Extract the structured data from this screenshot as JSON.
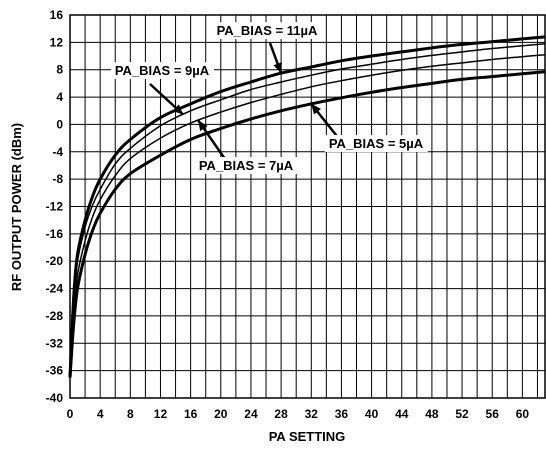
{
  "chart_data": {
    "type": "line",
    "xlabel": "PA SETTING",
    "ylabel": "RF OUTPUT POWER (dBm)",
    "xlim": [
      0,
      63
    ],
    "ylim": [
      -40,
      16
    ],
    "xticks": [
      0,
      4,
      8,
      12,
      16,
      20,
      24,
      28,
      32,
      36,
      40,
      44,
      48,
      52,
      56,
      60
    ],
    "yticks": [
      16,
      12,
      8,
      4,
      0,
      -4,
      -8,
      -12,
      -16,
      -20,
      -24,
      -28,
      -32,
      -36,
      -40
    ],
    "grid": true,
    "series": [
      {
        "name": "PA_BIAS = 11µA",
        "x": [
          0,
          0.5,
          1,
          2,
          3,
          4,
          6,
          8,
          12,
          16,
          20,
          24,
          28,
          32,
          36,
          40,
          44,
          48,
          52,
          56,
          60,
          63
        ],
        "y": [
          -37,
          -25,
          -19,
          -14,
          -10.5,
          -8,
          -4.5,
          -2.2,
          1,
          3,
          4.8,
          6.2,
          7.5,
          8.4,
          9.3,
          10.0,
          10.6,
          11.2,
          11.7,
          12.1,
          12.5,
          12.8
        ]
      },
      {
        "name": "PA_BIAS = 9µA",
        "x": [
          0,
          0.5,
          1,
          2,
          3,
          4,
          6,
          8,
          12,
          16,
          20,
          24,
          28,
          32,
          36,
          40,
          44,
          48,
          52,
          56,
          60,
          63
        ],
        "y": [
          -37,
          -26,
          -20,
          -15,
          -11.8,
          -9.5,
          -5.8,
          -3.5,
          -0.2,
          2,
          3.6,
          5.1,
          6.2,
          7.2,
          8.1,
          8.8,
          9.5,
          10.1,
          10.6,
          11.1,
          11.5,
          11.8
        ]
      },
      {
        "name": "PA_BIAS = 7µA",
        "x": [
          0,
          0.5,
          1,
          2,
          3,
          4,
          6,
          8,
          12,
          16,
          20,
          24,
          28,
          32,
          36,
          40,
          44,
          48,
          52,
          56,
          60,
          63
        ],
        "y": [
          -37,
          -27,
          -22,
          -17,
          -13.5,
          -11,
          -7.5,
          -5,
          -2,
          0.2,
          1.8,
          3.2,
          4.4,
          5.5,
          6.4,
          7.2,
          7.9,
          8.5,
          9.0,
          9.5,
          9.9,
          10.2
        ]
      },
      {
        "name": "PA_BIAS = 5µA",
        "x": [
          0,
          0.5,
          1,
          2,
          3,
          4,
          6,
          8,
          12,
          16,
          20,
          24,
          28,
          32,
          36,
          40,
          44,
          48,
          52,
          56,
          60,
          63
        ],
        "y": [
          -37,
          -29,
          -24,
          -19,
          -15.5,
          -13,
          -9.5,
          -7.2,
          -4.5,
          -2.2,
          -0.6,
          0.8,
          2,
          3,
          3.9,
          4.7,
          5.4,
          6.0,
          6.6,
          7.0,
          7.4,
          7.7
        ]
      }
    ],
    "annotations": [
      {
        "text": "PA_BIAS = 11µA",
        "series": 0
      },
      {
        "text": "PA_BIAS = 9µA",
        "series": 1
      },
      {
        "text": "PA_BIAS = 7µA",
        "series": 2
      },
      {
        "text": "PA_BIAS = 5µA",
        "series": 3
      }
    ]
  }
}
